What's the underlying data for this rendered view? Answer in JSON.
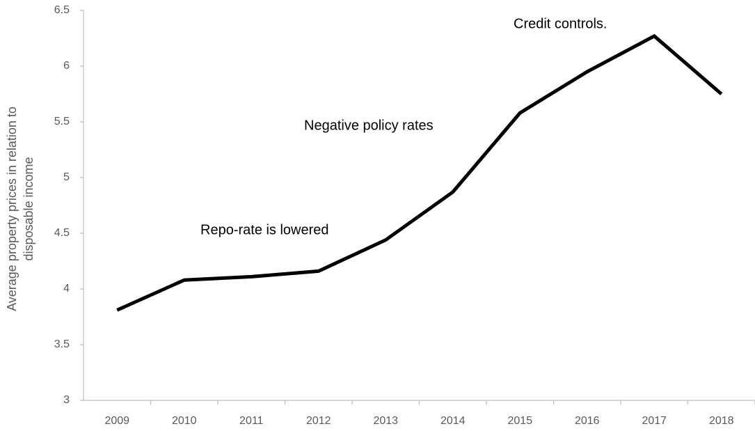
{
  "chart_data": {
    "type": "line",
    "ylabel": [
      "Average property prices in relation to",
      "disposable income"
    ],
    "categories": [
      "2009",
      "2010",
      "2011",
      "2012",
      "2013",
      "2014",
      "2015",
      "2016",
      "2017",
      "2018"
    ],
    "series": [
      {
        "color": "#000000",
        "values": [
          3.81,
          4.08,
          4.11,
          4.16,
          4.44,
          4.87,
          5.58,
          5.95,
          6.27,
          5.75
        ]
      }
    ],
    "ylim": [
      3,
      6.5
    ],
    "yticks": [
      3,
      3.5,
      4,
      4.5,
      5,
      5.5,
      6,
      6.5
    ],
    "grid": false,
    "annotations": [
      "Credit controls.",
      "Negative policy rates",
      "Repo-rate is lowered"
    ]
  }
}
